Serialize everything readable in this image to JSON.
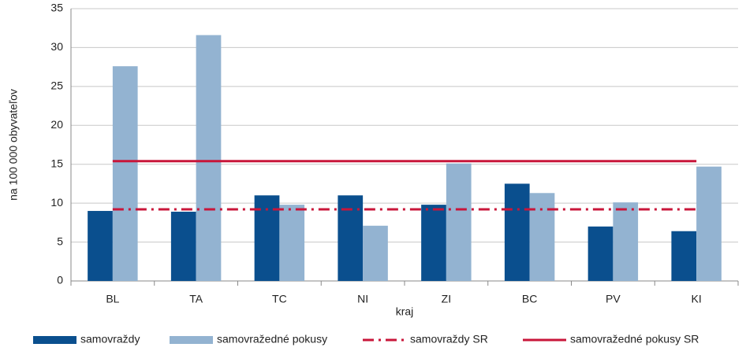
{
  "chart_data": {
    "type": "bar",
    "x_label": "kraj",
    "y_label": "na 100 000 obyvateľov",
    "categories": [
      "BL",
      "TA",
      "TC",
      "NI",
      "ZI",
      "BC",
      "PV",
      "KI"
    ],
    "series": [
      {
        "name": "samovraždy",
        "type": "bar",
        "color": "#0a4f8e",
        "values": [
          9.0,
          8.9,
          11.0,
          11.0,
          9.8,
          12.5,
          7.0,
          6.4
        ]
      },
      {
        "name": "samovražedné pokusy",
        "type": "bar",
        "color": "#93b3d1",
        "values": [
          27.6,
          31.6,
          9.8,
          7.1,
          15.1,
          11.3,
          10.1,
          14.7
        ]
      },
      {
        "name": "samovraždy SR",
        "type": "line",
        "style": "dash-dot",
        "color": "#c8163a",
        "values": [
          9.2,
          9.2,
          9.2,
          9.2,
          9.2,
          9.2,
          9.2,
          9.2
        ]
      },
      {
        "name": "samovražedné pokusy SR",
        "type": "line",
        "style": "solid",
        "color": "#c8163a",
        "values": [
          15.4,
          15.4,
          15.4,
          15.4,
          15.4,
          15.4,
          15.4,
          15.4
        ]
      }
    ],
    "ylim": [
      0,
      35
    ],
    "yticks": [
      0,
      5,
      10,
      15,
      20,
      25,
      30,
      35
    ],
    "grid": true,
    "legend": "bottom"
  }
}
